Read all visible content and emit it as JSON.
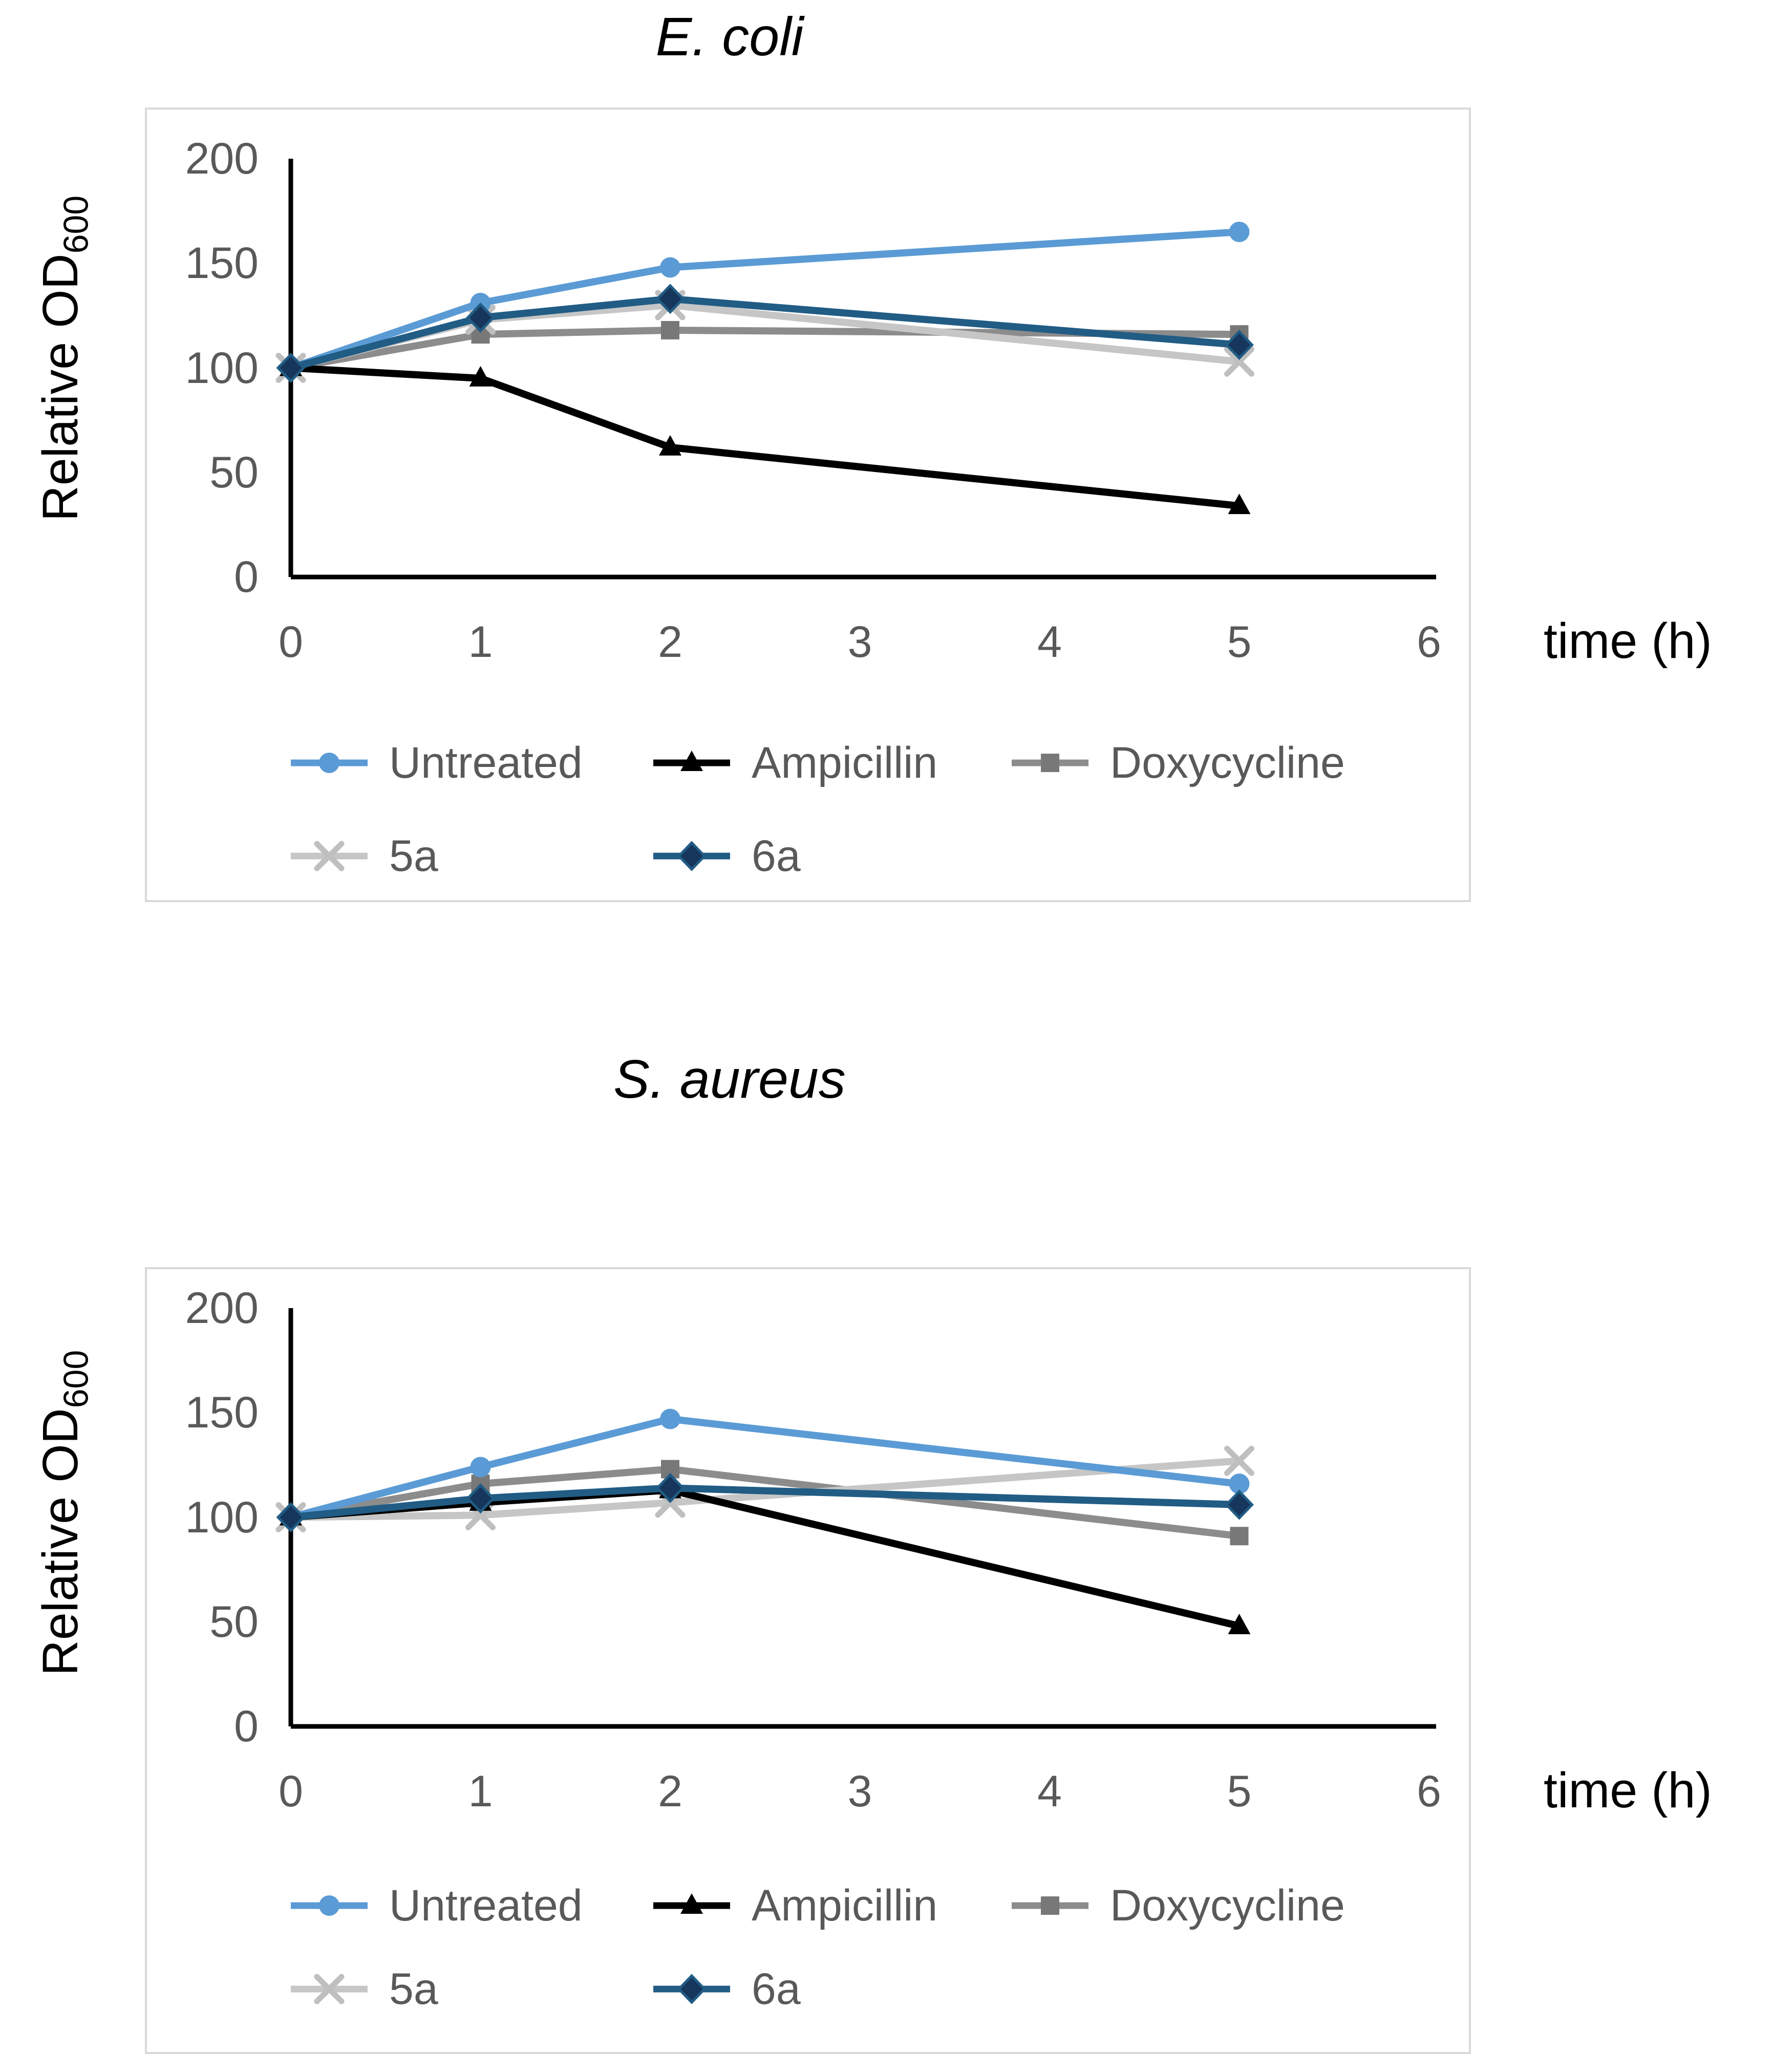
{
  "page": {
    "background": "#FFFFFF"
  },
  "colors": {
    "tick_text": "#595959",
    "legend_text": "#595959",
    "axis_line": "#000000",
    "panel_border": "#D9D9D9",
    "title_text": "#000000"
  },
  "charts": [
    {
      "title": "E. coli",
      "y_axis_label": {
        "main": "Relative OD",
        "sub": "600"
      },
      "x_axis_label": "time (h)",
      "y_ticks": [
        200,
        150,
        100,
        50,
        0
      ],
      "x_ticks": [
        0,
        1,
        2,
        3,
        4,
        5,
        6
      ],
      "chart_data": {
        "type": "line",
        "x": [
          0,
          1,
          2,
          5
        ],
        "series": [
          {
            "name": "Untreated",
            "marker": "circle",
            "color": "#5B9BD5",
            "marker_color": "#5B9BD5",
            "values": [
              100,
              131,
              148,
              165
            ]
          },
          {
            "name": "Ampicillin",
            "marker": "triangle",
            "color": "#000000",
            "marker_color": "#000000",
            "values": [
              100,
              95,
              62,
              34
            ]
          },
          {
            "name": "Doxycycline",
            "marker": "square",
            "color": "#8C8C8C",
            "marker_color": "#787878",
            "values": [
              100,
              116,
              118,
              116
            ]
          },
          {
            "name": "5a",
            "marker": "x",
            "color": "#C6C6C6",
            "marker_color": "#BFBFBF",
            "values": [
              100,
              123,
              130,
              103
            ]
          },
          {
            "name": "6a",
            "marker": "diamond",
            "color": "#215C84",
            "marker_color": "#16365C",
            "values": [
              100,
              124,
              133,
              111
            ]
          }
        ],
        "xlim": [
          0,
          6
        ],
        "ylim": [
          0,
          200
        ],
        "grid": false,
        "legend_position": "bottom"
      }
    },
    {
      "title": "S. aureus",
      "y_axis_label": {
        "main": "Relative OD",
        "sub": "600"
      },
      "x_axis_label": "time (h)",
      "y_ticks": [
        200,
        150,
        100,
        50,
        0
      ],
      "x_ticks": [
        0,
        1,
        2,
        3,
        4,
        5,
        6
      ],
      "chart_data": {
        "type": "line",
        "x": [
          0,
          1,
          2,
          5
        ],
        "series": [
          {
            "name": "Untreated",
            "marker": "circle",
            "color": "#5B9BD5",
            "marker_color": "#5B9BD5",
            "values": [
              100,
              124,
              147,
              116
            ]
          },
          {
            "name": "Ampicillin",
            "marker": "triangle",
            "color": "#000000",
            "marker_color": "#000000",
            "values": [
              100,
              107,
              113,
              48
            ]
          },
          {
            "name": "Doxycycline",
            "marker": "square",
            "color": "#8C8C8C",
            "marker_color": "#787878",
            "values": [
              100,
              116,
              123,
              91
            ]
          },
          {
            "name": "5a",
            "marker": "x",
            "color": "#C6C6C6",
            "marker_color": "#BFBFBF",
            "values": [
              100,
              101,
              107,
              127
            ]
          },
          {
            "name": "6a",
            "marker": "diamond",
            "color": "#215C84",
            "marker_color": "#16365C",
            "values": [
              100,
              109,
              114,
              106
            ]
          }
        ],
        "xlim": [
          0,
          6
        ],
        "ylim": [
          0,
          200
        ],
        "grid": false,
        "legend_position": "bottom"
      }
    }
  ]
}
